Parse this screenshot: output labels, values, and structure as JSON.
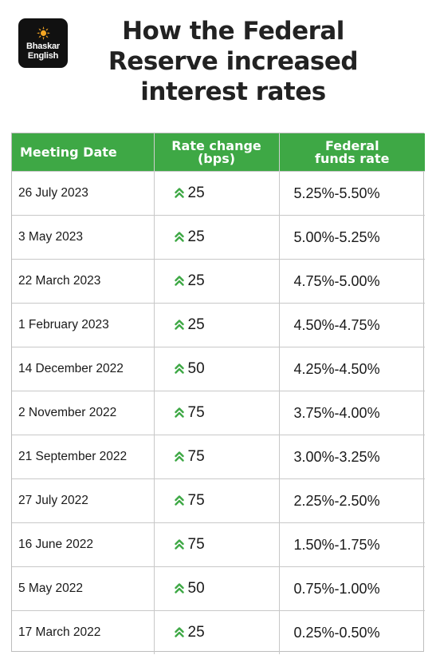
{
  "logo": {
    "line1": "Bhaskar",
    "line2": "English"
  },
  "title_lines": [
    "How the Federal",
    "Reserve increased",
    "interest rates"
  ],
  "colors": {
    "header_bg": "#3ea845",
    "arrow": "#3ea845",
    "logo_bg": "#111111",
    "sun": "#f5a623"
  },
  "chart_data": {
    "type": "table",
    "title": "How the Federal Reserve increased interest rates",
    "columns": [
      "Meeting Date",
      "Rate change (bps)",
      "Federal funds rate"
    ],
    "header_lines": [
      [
        "Meeting Date"
      ],
      [
        "Rate change",
        "(bps)"
      ],
      [
        "Federal",
        "funds rate"
      ]
    ],
    "rows": [
      {
        "date": "26 July 2023",
        "change": "25",
        "rate": "5.25%-5.50%"
      },
      {
        "date": "3 May 2023",
        "change": "25",
        "rate": "5.00%-5.25%"
      },
      {
        "date": "22 March 2023",
        "change": "25",
        "rate": "4.75%-5.00%"
      },
      {
        "date": "1 February 2023",
        "change": "25",
        "rate": "4.50%-4.75%"
      },
      {
        "date": "14 December 2022",
        "change": "50",
        "rate": "4.25%-4.50%"
      },
      {
        "date": "2 November 2022",
        "change": "75",
        "rate": "3.75%-4.00%"
      },
      {
        "date": "21 September 2022",
        "change": "75",
        "rate": "3.00%-3.25%"
      },
      {
        "date": "27 July 2022",
        "change": "75",
        "rate": "2.25%-2.50%"
      },
      {
        "date": "16 June 2022",
        "change": "75",
        "rate": "1.50%-1.75%"
      },
      {
        "date": "5 May 2022",
        "change": "50",
        "rate": "0.75%-1.00%"
      },
      {
        "date": "17 March 2022",
        "change": "25",
        "rate": "0.25%-0.50%"
      }
    ]
  }
}
